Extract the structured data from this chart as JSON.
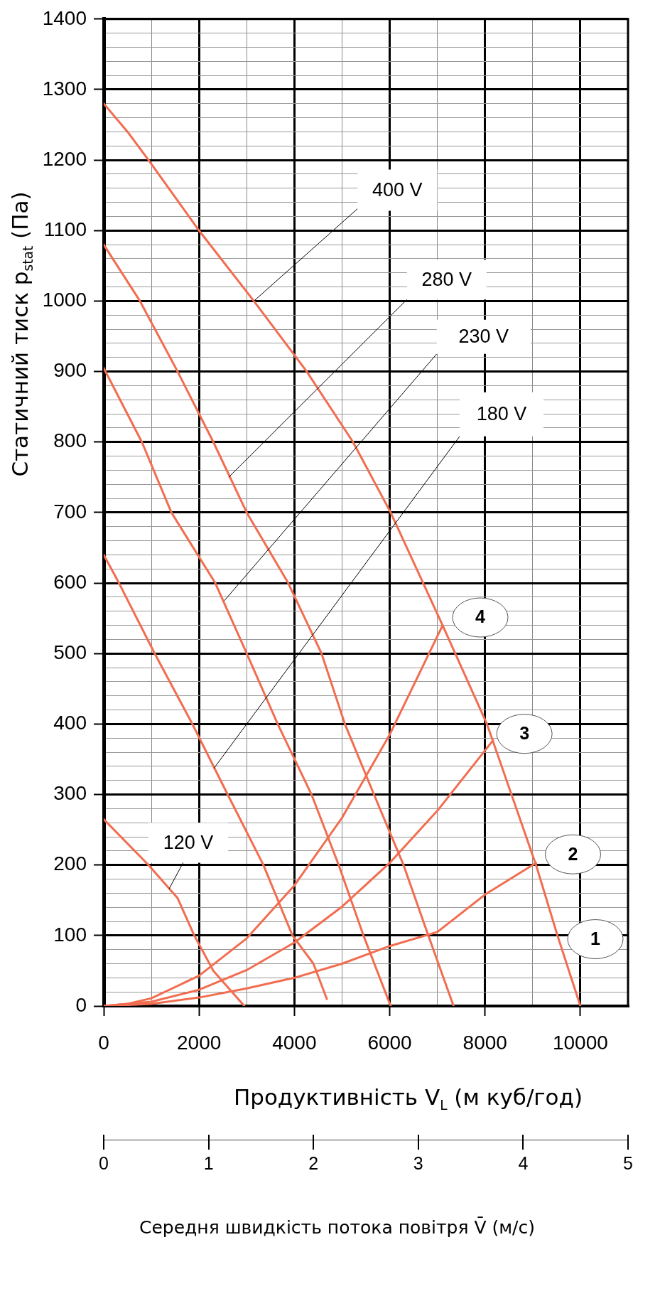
{
  "chart_data": {
    "type": "line",
    "xlabel": "Продуктивність V$_{L}$ (м куб/год)",
    "ylabel": "Статичний тиск p$_{stat}$ (Па)",
    "x2label": "Середня швидкість потока повітря V̄ (м/с)",
    "xlim": [
      0,
      11000
    ],
    "ylim": [
      0,
      1400
    ],
    "x2lim": [
      0,
      5
    ],
    "xticks": [
      0,
      {
        "value": 1000,
        "label": null
      },
      2000,
      {
        "value": 3000,
        "label": null
      },
      4000,
      {
        "value": 5000,
        "label": null
      },
      6000,
      {
        "value": 7000,
        "label": null
      },
      8000,
      {
        "value": 9000,
        "label": null
      },
      10000,
      {
        "value": 11000,
        "label": null
      }
    ],
    "yticks": [
      0,
      {
        "value": 20,
        "label": null
      },
      {
        "value": 40,
        "label": null
      },
      {
        "value": 60,
        "label": null
      },
      {
        "value": 80,
        "label": null
      },
      100,
      {
        "value": 120,
        "label": null
      },
      {
        "value": 140,
        "label": null
      },
      {
        "value": 160,
        "label": null
      },
      {
        "value": 180,
        "label": null
      },
      200,
      {
        "value": 220,
        "label": null
      },
      {
        "value": 240,
        "label": null
      },
      {
        "value": 260,
        "label": null
      },
      {
        "value": 280,
        "label": null
      },
      300,
      {
        "value": 320,
        "label": null
      },
      {
        "value": 340,
        "label": null
      },
      {
        "value": 360,
        "label": null
      },
      {
        "value": 380,
        "label": null
      },
      400,
      {
        "value": 420,
        "label": null
      },
      {
        "value": 440,
        "label": null
      },
      {
        "value": 460,
        "label": null
      },
      {
        "value": 480,
        "label": null
      },
      500,
      {
        "value": 520,
        "label": null
      },
      {
        "value": 540,
        "label": null
      },
      {
        "value": 560,
        "label": null
      },
      {
        "value": 580,
        "label": null
      },
      600,
      {
        "value": 620,
        "label": null
      },
      {
        "value": 640,
        "label": null
      },
      {
        "value": 660,
        "label": null
      },
      {
        "value": 680,
        "label": null
      },
      700,
      {
        "value": 720,
        "label": null
      },
      {
        "value": 740,
        "label": null
      },
      {
        "value": 760,
        "label": null
      },
      {
        "value": 780,
        "label": null
      },
      800,
      {
        "value": 820,
        "label": null
      },
      {
        "value": 840,
        "label": null
      },
      {
        "value": 860,
        "label": null
      },
      {
        "value": 880,
        "label": null
      },
      900,
      {
        "value": 920,
        "label": null
      },
      {
        "value": 940,
        "label": null
      },
      {
        "value": 960,
        "label": null
      },
      {
        "value": 980,
        "label": null
      },
      1000,
      {
        "value": 1020,
        "label": null
      },
      {
        "value": 1040,
        "label": null
      },
      {
        "value": 1060,
        "label": null
      },
      {
        "value": 1080,
        "label": null
      },
      1100,
      {
        "value": 1120,
        "label": null
      },
      {
        "value": 1140,
        "label": null
      },
      {
        "value": 1160,
        "label": null
      },
      {
        "value": 1180,
        "label": null
      },
      1200,
      {
        "value": 1220,
        "label": null
      },
      {
        "value": 1240,
        "label": null
      },
      {
        "value": 1260,
        "label": null
      },
      {
        "value": 1280,
        "label": null
      },
      1300,
      {
        "value": 1320,
        "label": null
      },
      {
        "value": 1340,
        "label": null
      },
      {
        "value": 1360,
        "label": null
      },
      {
        "value": 1380,
        "label": null
      },
      1400
    ],
    "x2ticks": [
      0,
      1,
      2,
      3,
      4,
      5
    ],
    "grid": true,
    "legend": false,
    "marker": "none",
    "line_style": "solid",
    "series": [
      {
        "color": "#f26d50",
        "x": [
          0,
          500,
          940,
          2000,
          3150,
          4260,
          5230,
          6020,
          7110,
          8040,
          9070,
          9520,
          10000
        ],
        "values": [
          1280,
          1240,
          1200,
          1100,
          1000,
          900,
          800,
          700,
          540,
          400,
          200,
          100,
          0
        ]
      },
      {
        "color": "#f26d50",
        "x": [
          0,
          760,
          1550,
          2300,
          3000,
          3870,
          4570,
          5060,
          5670,
          6290,
          6810,
          7340
        ],
        "values": [
          1080,
          1000,
          900,
          800,
          700,
          600,
          500,
          400,
          300,
          200,
          100,
          0
        ]
      },
      {
        "color": "#f26d50",
        "x": [
          0,
          800,
          1420,
          2340,
          3000,
          3650,
          4360,
          4930,
          5450,
          6020
        ],
        "values": [
          905,
          800,
          700,
          600,
          500,
          400,
          300,
          200,
          100,
          0
        ]
      },
      {
        "color": "#f26d50",
        "x": [
          0,
          320,
          1070,
          1860,
          2600,
          3350,
          3960,
          4400,
          4680
        ],
        "values": [
          640,
          600,
          500,
          400,
          300,
          200,
          100,
          60,
          10
        ]
      },
      {
        "color": "#f26d50",
        "x": [
          0,
          940,
          1550,
          1900,
          2300,
          2950
        ],
        "values": [
          265,
          200,
          153,
          100,
          50,
          0
        ]
      },
      {
        "color": "#f26d50",
        "x": [
          0,
          500,
          1000,
          2000,
          3000,
          4000,
          5000,
          6000,
          7110
        ],
        "values": [
          0,
          3,
          11,
          43,
          96,
          171,
          267,
          385,
          540
        ]
      },
      {
        "color": "#f26d50",
        "x": [
          0,
          1000,
          2000,
          3000,
          4000,
          5000,
          6000,
          7000,
          8170
        ],
        "values": [
          0,
          6,
          23,
          51,
          90,
          141,
          203,
          277,
          377
        ]
      },
      {
        "color": "#f26d50",
        "x": [
          0,
          1000,
          2000,
          3000,
          4000,
          5000,
          6000,
          7000,
          8000,
          9070
        ],
        "values": [
          0,
          3,
          12,
          25,
          40,
          60,
          85,
          105,
          158,
          203
        ]
      }
    ],
    "annotations": [
      {
        "text": "400 V",
        "x": 3150,
        "y": 1000
      },
      {
        "text": "280 V",
        "x": 2620,
        "y": 750
      },
      {
        "text": "230 V",
        "x": 2530,
        "y": 575
      },
      {
        "text": "180 V",
        "x": 2310,
        "y": 337
      },
      {
        "text": "120 V",
        "x": 1370,
        "y": 166
      },
      {
        "text": "4",
        "x": 7110,
        "y": 540
      },
      {
        "text": "3",
        "x": 8170,
        "y": 377
      },
      {
        "text": "2",
        "x": 9070,
        "y": 203
      },
      "1"
    ]
  }
}
